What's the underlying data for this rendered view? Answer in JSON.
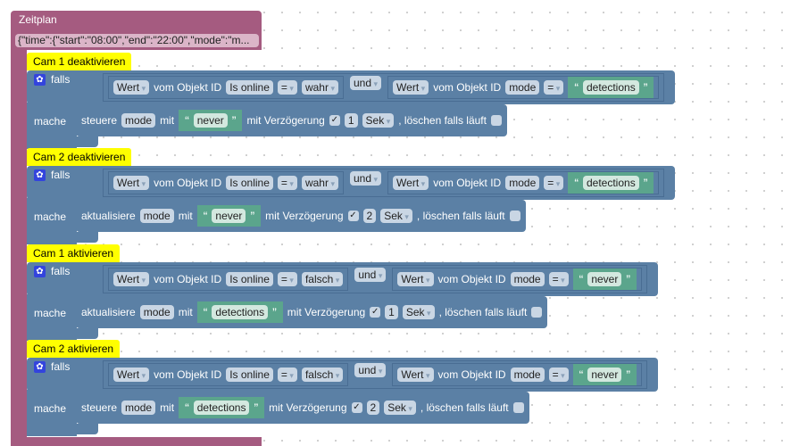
{
  "procedure": {
    "title": "Zeitplan",
    "param": "{\"time\":{\"start\":\"08:00\",\"end\":\"22:00\",\"mode\":\"m..."
  },
  "labels": {
    "if": "falls",
    "do": "mache",
    "value": "Wert",
    "of_object": "vom Objekt ID",
    "and": "und",
    "eq": "=",
    "with": "mit",
    "delay": "mit Verzögerung",
    "unit": "Sek",
    "clear": ", löschen falls läuft",
    "quote_open": "“",
    "quote_close": "”",
    "check": "✓"
  },
  "blocks": [
    {
      "comment": "Cam 1 deaktivieren",
      "obj1": "Is online",
      "val1": "wahr",
      "obj2": "mode",
      "val2": "detections",
      "action": "steuere",
      "target": "mode",
      "set": "never",
      "delay": "1"
    },
    {
      "comment": "Cam 2 deaktivieren",
      "obj1": "Is online",
      "val1": "wahr",
      "obj2": "mode",
      "val2": "detections",
      "action": "aktualisiere",
      "target": "mode",
      "set": "never",
      "delay": "2"
    },
    {
      "comment": "Cam 1 aktivieren",
      "obj1": "Is online",
      "val1": "falsch",
      "obj2": "mode",
      "val2": "never",
      "action": "aktualisiere",
      "target": "mode",
      "set": "detections",
      "delay": "1"
    },
    {
      "comment": "Cam 2 aktivieren",
      "obj1": "Is online",
      "val1": "falsch",
      "obj2": "mode",
      "val2": "never",
      "action": "steuere",
      "target": "mode",
      "set": "detections",
      "delay": "2"
    }
  ],
  "colors": {
    "procedure": "#a55b80",
    "logic": "#5b80a5",
    "text": "#5ba58c",
    "comment": "#ffff00"
  }
}
